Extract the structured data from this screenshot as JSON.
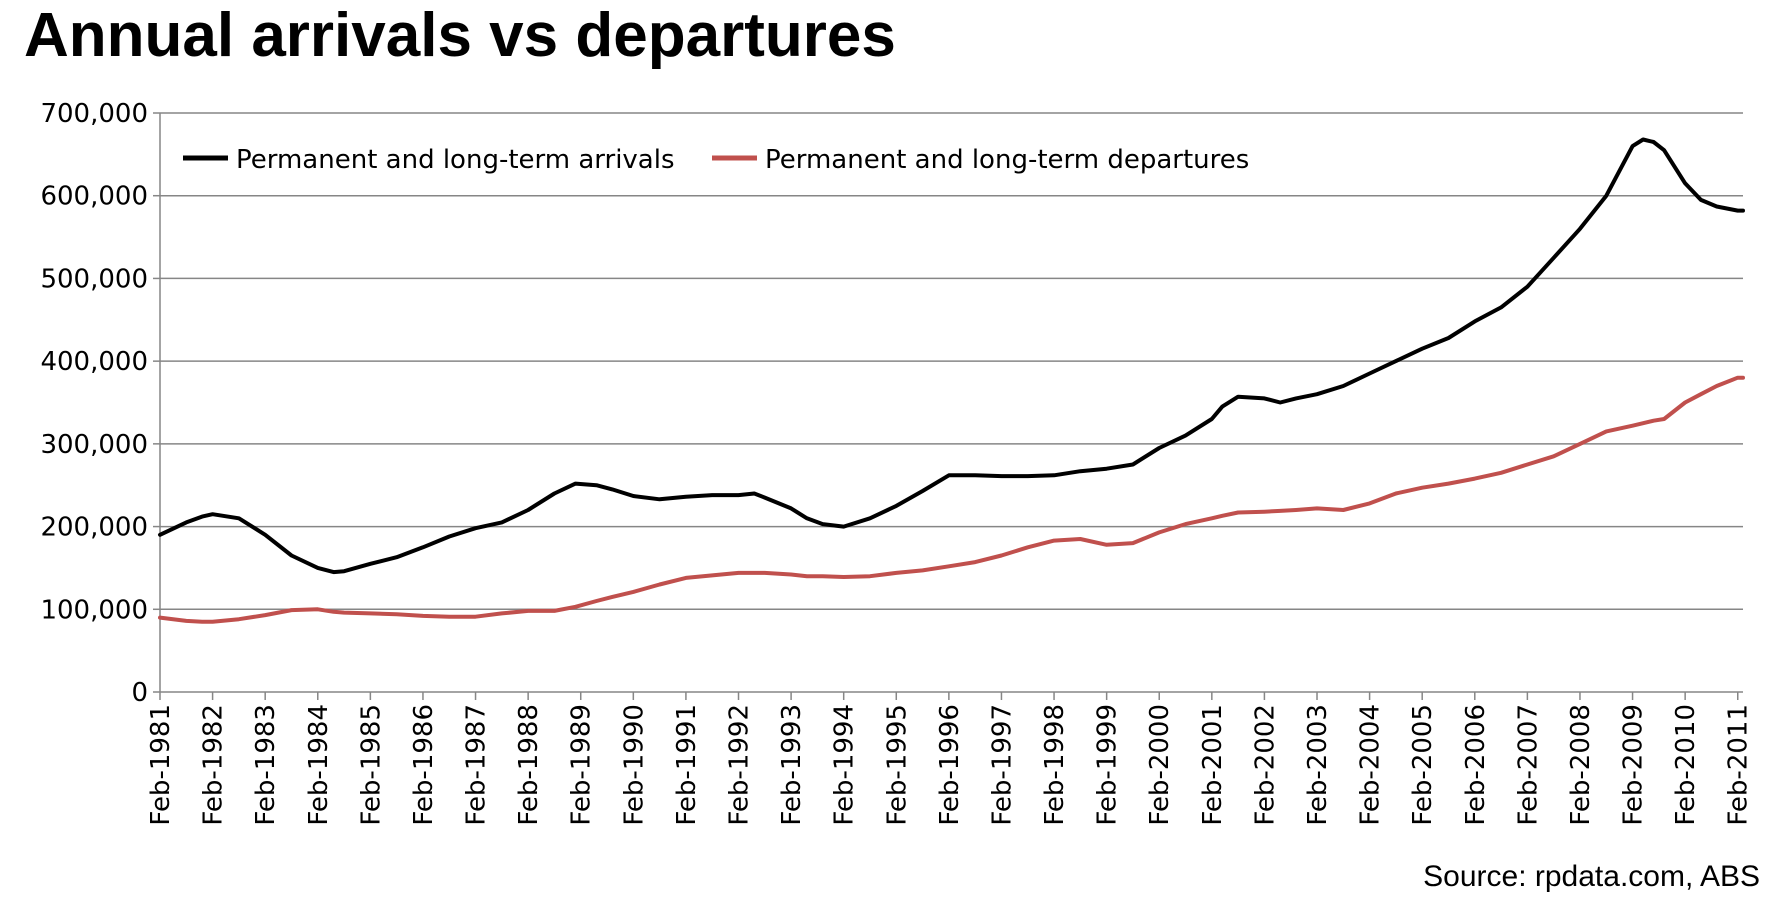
{
  "chart_data": {
    "type": "line",
    "title": "Annual arrivals vs departures",
    "source": "Source: rpdata.com,  ABS",
    "xlabel": "",
    "ylabel": "",
    "ylim": [
      0,
      700000
    ],
    "yticks": [
      "700,000",
      "600,000",
      "500,000",
      "400,000",
      "300,000",
      "200,000",
      "100,000",
      "0"
    ],
    "ytick_values": [
      700000,
      600000,
      500000,
      400000,
      300000,
      200000,
      100000,
      0
    ],
    "grid": true,
    "legend_position": "top-left",
    "categories": [
      "Feb-1981",
      "Feb-1982",
      "Feb-1983",
      "Feb-1984",
      "Feb-1985",
      "Feb-1986",
      "Feb-1987",
      "Feb-1988",
      "Feb-1989",
      "Feb-1990",
      "Feb-1991",
      "Feb-1992",
      "Feb-1993",
      "Feb-1994",
      "Feb-1995",
      "Feb-1996",
      "Feb-1997",
      "Feb-1998",
      "Feb-1999",
      "Feb-2000",
      "Feb-2001",
      "Feb-2002",
      "Feb-2003",
      "Feb-2004",
      "Feb-2005",
      "Feb-2006",
      "Feb-2007",
      "Feb-2008",
      "Feb-2009",
      "Feb-2010",
      "Feb-2011"
    ],
    "x": [
      1981.0,
      1981.5,
      1981.8,
      1982.0,
      1982.5,
      1983.0,
      1983.5,
      1984.0,
      1984.3,
      1984.5,
      1985.0,
      1985.5,
      1986.0,
      1986.5,
      1987.0,
      1987.5,
      1988.0,
      1988.5,
      1988.9,
      1989.3,
      1989.6,
      1990.0,
      1990.5,
      1991.0,
      1991.5,
      1992.0,
      1992.3,
      1992.5,
      1993.0,
      1993.3,
      1993.6,
      1994.0,
      1994.5,
      1995.0,
      1995.5,
      1996.0,
      1996.5,
      1997.0,
      1997.5,
      1998.0,
      1998.5,
      1999.0,
      1999.5,
      2000.0,
      2000.5,
      2001.0,
      2001.2,
      2001.5,
      2002.0,
      2002.3,
      2002.6,
      2003.0,
      2003.5,
      2004.0,
      2004.5,
      2005.0,
      2005.5,
      2006.0,
      2006.5,
      2007.0,
      2007.5,
      2008.0,
      2008.5,
      2009.0,
      2009.2,
      2009.4,
      2009.6,
      2010.0,
      2010.3,
      2010.6,
      2011.0,
      2011.1
    ],
    "series": [
      {
        "name": "Permanent and long-term arrivals",
        "color": "#000000",
        "values": [
          190000,
          205000,
          212000,
          215000,
          210000,
          190000,
          165000,
          150000,
          145000,
          146000,
          155000,
          163000,
          175000,
          188000,
          198000,
          205000,
          220000,
          240000,
          252000,
          250000,
          245000,
          237000,
          233000,
          236000,
          238000,
          238000,
          240000,
          235000,
          222000,
          210000,
          203000,
          200000,
          210000,
          225000,
          243000,
          262000,
          262000,
          261000,
          261000,
          262000,
          267000,
          270000,
          275000,
          295000,
          310000,
          330000,
          345000,
          357000,
          355000,
          350000,
          355000,
          360000,
          370000,
          385000,
          400000,
          415000,
          428000,
          448000,
          465000,
          490000,
          525000,
          560000,
          600000,
          660000,
          668000,
          665000,
          655000,
          615000,
          595000,
          587000,
          582000,
          582000
        ]
      },
      {
        "name": "Permanent and long-term departures",
        "color": "#c0504d",
        "values": [
          90000,
          86000,
          85000,
          85000,
          88000,
          93000,
          99000,
          100000,
          97000,
          96000,
          95000,
          94000,
          92000,
          91000,
          91000,
          95000,
          98000,
          98000,
          103000,
          110000,
          115000,
          121000,
          130000,
          138000,
          141000,
          144000,
          144000,
          144000,
          142000,
          140000,
          140000,
          139000,
          140000,
          144000,
          147000,
          152000,
          157000,
          165000,
          175000,
          183000,
          185000,
          178000,
          180000,
          193000,
          203000,
          210000,
          213000,
          217000,
          218000,
          219000,
          220000,
          222000,
          220000,
          228000,
          240000,
          247000,
          252000,
          258000,
          265000,
          275000,
          285000,
          300000,
          315000,
          322000,
          325000,
          328000,
          330000,
          350000,
          360000,
          370000,
          380000,
          380000
        ]
      }
    ]
  }
}
